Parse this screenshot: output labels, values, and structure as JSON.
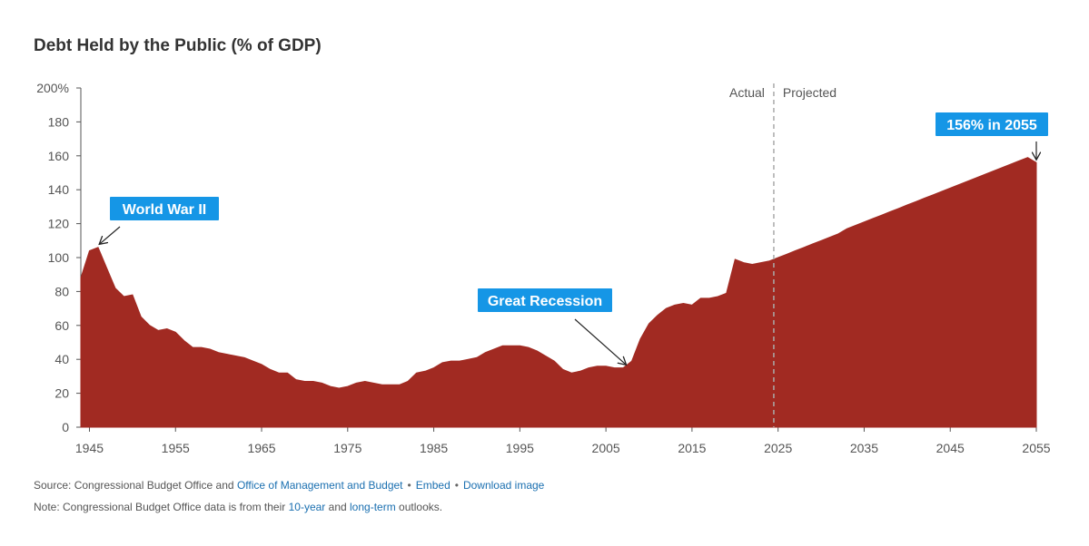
{
  "title": "Debt Held by the Public (% of GDP)",
  "chart_data": {
    "type": "area",
    "title": "Debt Held by the Public (% of GDP)",
    "color": "#a12a22",
    "ylim": [
      0,
      200
    ],
    "xlim": [
      1944,
      2055
    ],
    "y_ticks": [
      "0",
      "20",
      "40",
      "60",
      "80",
      "100",
      "120",
      "140",
      "160",
      "180",
      "200%"
    ],
    "x_ticks": [
      "1945",
      "1955",
      "1965",
      "1975",
      "1985",
      "1995",
      "2005",
      "2015",
      "2025",
      "2035",
      "2045",
      "2055"
    ],
    "x": [
      1944,
      1945,
      1946,
      1947,
      1948,
      1949,
      1950,
      1951,
      1952,
      1953,
      1954,
      1955,
      1956,
      1957,
      1958,
      1959,
      1960,
      1961,
      1962,
      1963,
      1964,
      1965,
      1966,
      1967,
      1968,
      1969,
      1970,
      1971,
      1972,
      1973,
      1974,
      1975,
      1976,
      1977,
      1978,
      1979,
      1980,
      1981,
      1982,
      1983,
      1984,
      1985,
      1986,
      1987,
      1988,
      1989,
      1990,
      1991,
      1992,
      1993,
      1994,
      1995,
      1996,
      1997,
      1998,
      1999,
      2000,
      2001,
      2002,
      2003,
      2004,
      2005,
      2006,
      2007,
      2008,
      2009,
      2010,
      2011,
      2012,
      2013,
      2014,
      2015,
      2016,
      2017,
      2018,
      2019,
      2020,
      2021,
      2022,
      2023,
      2024,
      2025,
      2026,
      2027,
      2028,
      2029,
      2030,
      2031,
      2032,
      2033,
      2034,
      2035,
      2036,
      2037,
      2038,
      2039,
      2040,
      2041,
      2042,
      2043,
      2044,
      2045,
      2046,
      2047,
      2048,
      2049,
      2050,
      2051,
      2052,
      2053,
      2054,
      2055
    ],
    "values": [
      88,
      104,
      106,
      94,
      82,
      77,
      78,
      65,
      60,
      57,
      58,
      56,
      51,
      47,
      47,
      46,
      44,
      43,
      42,
      41,
      39,
      37,
      34,
      32,
      32,
      28,
      27,
      27,
      26,
      24,
      23,
      24,
      26,
      27,
      26,
      25,
      25,
      25,
      27,
      32,
      33,
      35,
      38,
      39,
      39,
      40,
      41,
      44,
      46,
      48,
      48,
      48,
      47,
      45,
      42,
      39,
      34,
      32,
      33,
      35,
      36,
      36,
      35,
      35,
      39,
      52,
      61,
      66,
      70,
      72,
      73,
      72,
      76,
      76,
      77,
      79,
      99,
      97,
      96,
      97,
      98,
      100,
      102,
      104,
      106,
      108,
      110,
      112,
      114,
      117,
      119,
      121,
      123,
      125,
      127,
      129,
      131,
      133,
      135,
      137,
      139,
      141,
      143,
      145,
      147,
      149,
      151,
      153,
      155,
      157,
      159,
      156
    ]
  },
  "divider": {
    "year": 2024.5,
    "left_label": "Actual",
    "right_label": "Projected"
  },
  "annotations": [
    {
      "text": "World War II",
      "year": 1946,
      "value": 106
    },
    {
      "text": "Great Recession",
      "year": 2007.5,
      "value": 36
    },
    {
      "text": "156% in 2055",
      "year": 2055,
      "value": 156
    }
  ],
  "footer": {
    "source_prefix": "Source: Congressional Budget Office and",
    "omb_link": "Office of Management and Budget",
    "embed_link": "Embed",
    "download_link": "Download image",
    "note_prefix": "Note: Congressional Budget Office data is from their",
    "ten_year_link": "10-year",
    "and_text": "and",
    "long_term_link": "long-term",
    "note_suffix": "outlooks."
  }
}
